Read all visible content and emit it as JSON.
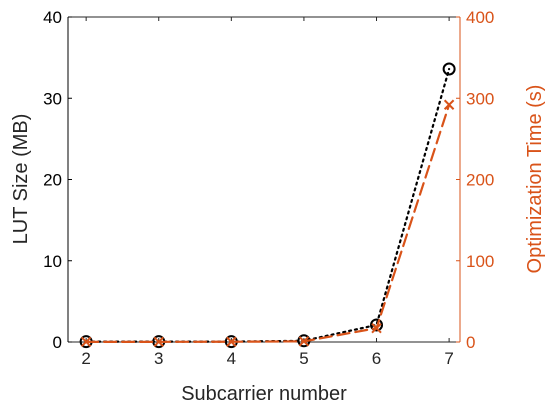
{
  "chart_data": {
    "type": "line",
    "xlabel": "Subcarrier number",
    "ylabel_left": "LUT Size (MB)",
    "ylabel_right": "Optimization Time (s)",
    "x": [
      2,
      3,
      4,
      5,
      6,
      7
    ],
    "xlim": [
      1.75,
      7.15
    ],
    "x_ticks": [
      "2",
      "3",
      "4",
      "5",
      "6",
      "7"
    ],
    "ylim_left": [
      0,
      40
    ],
    "y_ticks_left": [
      "0",
      "10",
      "20",
      "30",
      "40"
    ],
    "ylim_right": [
      0,
      400
    ],
    "y_ticks_right": [
      "0",
      "100",
      "200",
      "300",
      "400"
    ],
    "grid": false,
    "series": [
      {
        "values": [
          0.05,
          0.05,
          0.05,
          0.15,
          2.1,
          33.6
        ],
        "axis": "left",
        "color": "#000000",
        "line_style": "dotted",
        "marker": "circle"
      },
      {
        "values": [
          0.2,
          0.2,
          0.3,
          0.8,
          17,
          292
        ],
        "axis": "right",
        "color": "#D95319",
        "line_style": "dashed",
        "marker": "x"
      }
    ],
    "colors": {
      "left_axis": "#000000",
      "right_axis": "#D95319"
    }
  }
}
